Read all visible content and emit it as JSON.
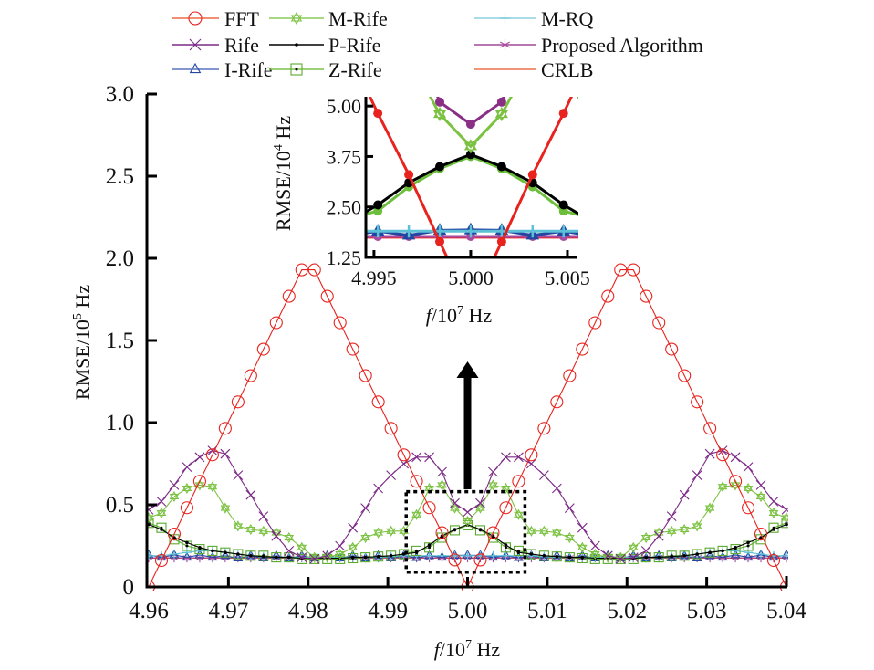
{
  "chart_data": {
    "type": "line",
    "title": "",
    "xlabel": "f/10^7 Hz",
    "xlabel_italic": "f",
    "xlabel_rest": "/10",
    "xlabel_sup": "7",
    "xlabel_unit": " Hz",
    "ylabel_main": "RMSE/10",
    "ylabel_sup": "5",
    "ylabel_unit": " Hz",
    "xlim": [
      4.96,
      5.04
    ],
    "ylim": [
      0,
      3.0
    ],
    "x_ticks": [
      "4.96",
      "4.97",
      "4.98",
      "4.99",
      "5.00",
      "5.01",
      "5.02",
      "5.03",
      "5.04"
    ],
    "x_tick_values": [
      4.96,
      4.97,
      4.98,
      4.99,
      5.0,
      5.01,
      5.02,
      5.03,
      5.04
    ],
    "y_ticks": [
      "0",
      "0.5",
      "1.0",
      "1.5",
      "2.0",
      "2.5",
      "3.0"
    ],
    "y_tick_values": [
      0,
      0.5,
      1.0,
      1.5,
      2.0,
      2.5,
      3.0
    ],
    "grid": false,
    "legend_placement": "top (above plot, 3 columns)",
    "x_start": 4.96,
    "x_step": 0.0016,
    "half_values_note": "values k=0..25 (4.96..5.00), mirrored about 5.00 for k=26..50",
    "series": [
      {
        "name": "FFT",
        "color": "#e8231e",
        "legend_color": "#ee6a45",
        "marker": "circle",
        "half": [
          0,
          0.161,
          0.322,
          0.482,
          0.643,
          0.804,
          0.965,
          1.126,
          1.286,
          1.447,
          1.608,
          1.769,
          1.93,
          1.93,
          1.769,
          1.608,
          1.447,
          1.286,
          1.126,
          0.965,
          0.804,
          0.643,
          0.482,
          0.33,
          0.164,
          0
        ]
      },
      {
        "name": "Rife",
        "color": "#7b2a86",
        "legend_color": "#7b2a86",
        "marker": "x",
        "half": [
          0.47,
          0.52,
          0.62,
          0.73,
          0.79,
          0.83,
          0.81,
          0.68,
          0.56,
          0.43,
          0.31,
          0.22,
          0.18,
          0.17,
          0.19,
          0.25,
          0.36,
          0.48,
          0.6,
          0.68,
          0.75,
          0.79,
          0.79,
          0.7,
          0.51,
          0.455
        ]
      },
      {
        "name": "I-Rife",
        "color": "#2346a0",
        "legend_color": "#5a74c0",
        "marker": "triangle",
        "half": [
          0.195,
          0.18,
          0.195,
          0.18,
          0.195,
          0.18,
          0.19,
          0.175,
          0.19,
          0.175,
          0.19,
          0.175,
          0.19,
          0.175,
          0.19,
          0.175,
          0.19,
          0.175,
          0.19,
          0.175,
          0.19,
          0.178,
          0.19,
          0.18,
          0.192,
          0.193
        ]
      },
      {
        "name": "M-Rife",
        "color": "#7cc242",
        "legend_color": "#8ccc5a",
        "marker": "star",
        "half": [
          0.42,
          0.45,
          0.55,
          0.6,
          0.62,
          0.61,
          0.48,
          0.37,
          0.35,
          0.34,
          0.33,
          0.3,
          0.24,
          0.18,
          0.18,
          0.2,
          0.24,
          0.3,
          0.33,
          0.34,
          0.34,
          0.44,
          0.6,
          0.62,
          0.48,
          0.4
        ]
      },
      {
        "name": "P-Rife",
        "color": "#000000",
        "legend_color": "#000000",
        "marker": "dot",
        "half": [
          0.38,
          0.35,
          0.3,
          0.27,
          0.24,
          0.22,
          0.21,
          0.2,
          0.19,
          0.185,
          0.18,
          0.18,
          0.175,
          0.175,
          0.175,
          0.175,
          0.18,
          0.18,
          0.185,
          0.19,
          0.2,
          0.21,
          0.255,
          0.31,
          0.35,
          0.38
        ]
      },
      {
        "name": "Z-Rife",
        "color": "#5aaa2e",
        "legend_color": "#7cc24a",
        "marker": "square",
        "half": [
          0.39,
          0.36,
          0.29,
          0.25,
          0.23,
          0.22,
          0.21,
          0.2,
          0.19,
          0.19,
          0.18,
          0.18,
          0.17,
          0.17,
          0.17,
          0.17,
          0.175,
          0.18,
          0.185,
          0.19,
          0.2,
          0.22,
          0.24,
          0.3,
          0.345,
          0.375
        ]
      },
      {
        "name": "M-RQ",
        "color": "#5cc0d6",
        "legend_color": "#8ed0e0",
        "marker": "plus",
        "half": [
          0.19,
          0.19,
          0.2,
          0.21,
          0.22,
          0.22,
          0.21,
          0.2,
          0.19,
          0.185,
          0.18,
          0.18,
          0.18,
          0.18,
          0.18,
          0.18,
          0.18,
          0.18,
          0.18,
          0.185,
          0.19,
          0.19,
          0.19,
          0.19,
          0.19,
          0.19
        ]
      },
      {
        "name": "Proposed Algorithm",
        "color": "#a84aa0",
        "legend_color": "#a04a9a",
        "marker": "asterisk",
        "half": [
          0.177,
          0.177,
          0.177,
          0.177,
          0.177,
          0.177,
          0.177,
          0.177,
          0.177,
          0.177,
          0.177,
          0.177,
          0.177,
          0.177,
          0.177,
          0.177,
          0.177,
          0.177,
          0.177,
          0.177,
          0.177,
          0.177,
          0.177,
          0.177,
          0.177,
          0.177
        ]
      },
      {
        "name": "CRLB",
        "color": "#e8502a",
        "legend_color": "#ee7048",
        "marker": "none",
        "half": [
          0.175,
          0.175,
          0.175,
          0.175,
          0.175,
          0.175,
          0.175,
          0.175,
          0.175,
          0.175,
          0.175,
          0.175,
          0.175,
          0.175,
          0.175,
          0.175,
          0.175,
          0.175,
          0.175,
          0.175,
          0.175,
          0.175,
          0.175,
          0.175,
          0.175,
          0.175
        ]
      }
    ],
    "zoom_box": {
      "x_range": [
        4.9923,
        5.0072
      ],
      "y_range": [
        0.09,
        0.58
      ]
    },
    "inset": {
      "xlabel_italic": "f",
      "xlabel_rest": "/10",
      "xlabel_sup": "7",
      "xlabel_unit": " Hz",
      "ylabel_main": "RMSE/10",
      "ylabel_sup": "4",
      "ylabel_unit": " Hz",
      "xlim": [
        4.99458,
        5.00552
      ],
      "ylim": [
        1.25,
        5.23
      ],
      "x_ticks": [
        "4.995",
        "5.000",
        "5.005"
      ],
      "x_tick_values": [
        4.995,
        5.0,
        5.005
      ],
      "y_ticks": [
        "1.25",
        "2.50",
        "3.75",
        "5.00"
      ],
      "y_tick_values": [
        1.25,
        2.5,
        3.75,
        5.0
      ],
      "unit_scale_note": "inset y in 10^4 Hz = main y x 10"
    }
  },
  "legend": {
    "columns": [
      [
        "FFT",
        "Rife",
        "I-Rife"
      ],
      [
        "M-Rife",
        "P-Rife",
        "Z-Rife"
      ],
      [
        "M-RQ",
        "Proposed Algorithm",
        "CRLB"
      ]
    ]
  }
}
